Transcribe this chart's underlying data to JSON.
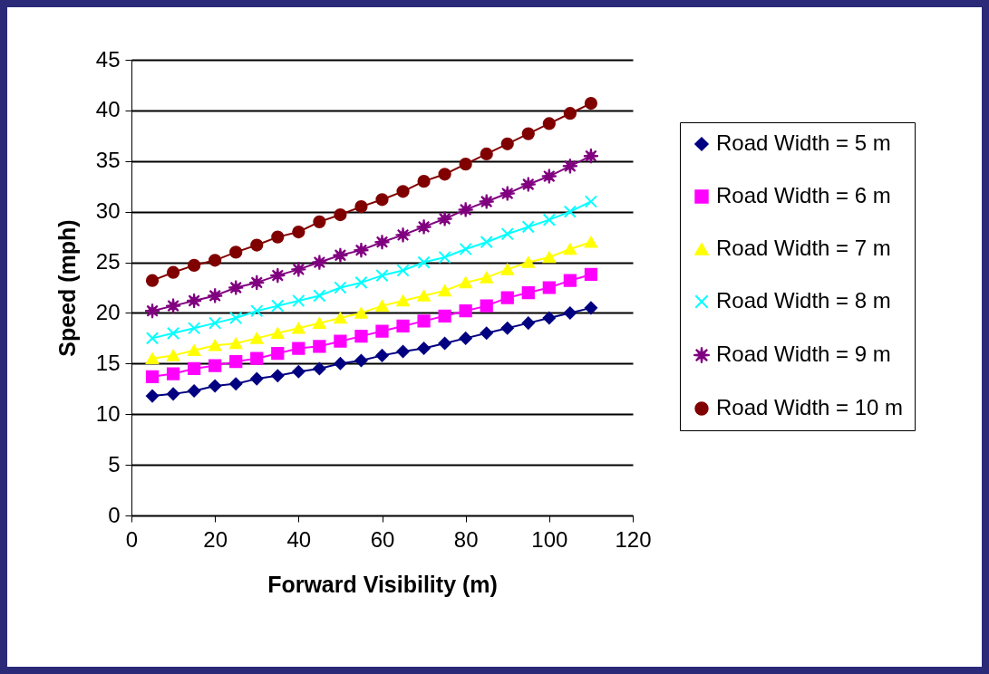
{
  "chart_data": {
    "type": "line",
    "xlabel": "Forward Visibility (m)",
    "ylabel": "Speed (mph)",
    "x": [
      5,
      10,
      15,
      20,
      25,
      30,
      35,
      40,
      45,
      50,
      55,
      60,
      65,
      70,
      75,
      80,
      85,
      90,
      95,
      100,
      105,
      110
    ],
    "series": [
      {
        "name": "Road Width = 5 m",
        "color": "#000080",
        "marker": "diamond",
        "values": [
          11.8,
          12.0,
          12.3,
          12.8,
          13.0,
          13.5,
          13.8,
          14.2,
          14.5,
          15.0,
          15.3,
          15.8,
          16.2,
          16.5,
          17.0,
          17.5,
          18.0,
          18.5,
          19.0,
          19.5,
          20.0,
          20.5
        ]
      },
      {
        "name": "Road Width = 6 m",
        "color": "#ff00ff",
        "marker": "square",
        "values": [
          13.7,
          14.0,
          14.5,
          14.8,
          15.2,
          15.5,
          16.0,
          16.5,
          16.7,
          17.2,
          17.7,
          18.2,
          18.7,
          19.2,
          19.7,
          20.2,
          20.7,
          21.5,
          22.0,
          22.5,
          23.2,
          23.8
        ]
      },
      {
        "name": "Road Width = 7 m",
        "color": "#ffff00",
        "marker": "triangle",
        "values": [
          15.5,
          15.8,
          16.3,
          16.8,
          17.0,
          17.5,
          18.0,
          18.5,
          19.0,
          19.5,
          20.0,
          20.7,
          21.2,
          21.7,
          22.2,
          23.0,
          23.5,
          24.3,
          25.0,
          25.5,
          26.3,
          27.0
        ]
      },
      {
        "name": "Road Width = 8 m",
        "color": "#00ffff",
        "marker": "cross",
        "values": [
          17.5,
          18.0,
          18.5,
          19.0,
          19.5,
          20.2,
          20.7,
          21.2,
          21.7,
          22.5,
          23.0,
          23.7,
          24.2,
          25.0,
          25.5,
          26.3,
          27.0,
          27.8,
          28.5,
          29.2,
          30.0,
          31.0
        ]
      },
      {
        "name": "Road Width = 9 m",
        "color": "#800080",
        "marker": "star",
        "values": [
          20.2,
          20.7,
          21.2,
          21.7,
          22.5,
          23.0,
          23.7,
          24.3,
          25.0,
          25.7,
          26.2,
          27.0,
          27.7,
          28.5,
          29.3,
          30.2,
          31.0,
          31.8,
          32.7,
          33.5,
          34.5,
          35.5
        ]
      },
      {
        "name": "Road Width = 10 m",
        "color": "#800000",
        "marker": "circle",
        "values": [
          23.2,
          24.0,
          24.7,
          25.2,
          26.0,
          26.7,
          27.5,
          28.0,
          29.0,
          29.7,
          30.5,
          31.2,
          32.0,
          33.0,
          33.7,
          34.7,
          35.7,
          36.7,
          37.7,
          38.7,
          39.7,
          40.7
        ]
      }
    ],
    "xlim": [
      0,
      120
    ],
    "xticks": [
      0,
      20,
      40,
      60,
      80,
      100,
      120
    ],
    "ylim": [
      0,
      45
    ],
    "yticks": [
      0,
      5,
      10,
      15,
      20,
      25,
      30,
      35,
      40,
      45
    ],
    "grid": "y",
    "legend": "right",
    "line_style": "solid"
  }
}
